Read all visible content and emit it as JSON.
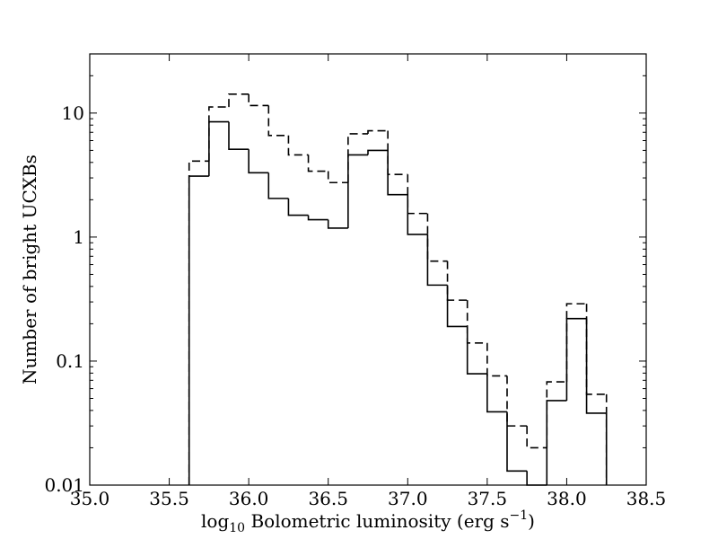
{
  "chart_data": {
    "type": "bar",
    "style": "step-histogram",
    "xlabel_prefix": "log",
    "xlabel_sub": "10",
    "xlabel_main": " Bolometric luminosity (erg s",
    "xlabel_sup": "−1",
    "xlabel_suffix": ")",
    "ylabel": "Number of bright UCXBs",
    "xlim": [
      35.0,
      38.5
    ],
    "ylim": [
      0.01,
      30
    ],
    "y_scale": "log",
    "grid": false,
    "x_ticks": [
      {
        "value": 35.0,
        "label": "35.0"
      },
      {
        "value": 35.5,
        "label": "35.5"
      },
      {
        "value": 36.0,
        "label": "36.0"
      },
      {
        "value": 36.5,
        "label": "36.5"
      },
      {
        "value": 37.0,
        "label": "37.0"
      },
      {
        "value": 37.5,
        "label": "37.5"
      },
      {
        "value": 38.0,
        "label": "38.0"
      },
      {
        "value": 38.5,
        "label": "38.5"
      }
    ],
    "y_ticks": [
      {
        "value": 0.01,
        "label": "0.01"
      },
      {
        "value": 0.1,
        "label": "0.1"
      },
      {
        "value": 1,
        "label": "1"
      },
      {
        "value": 10,
        "label": "10"
      }
    ],
    "bin_edges": [
      35.625,
      35.75,
      35.875,
      36.0,
      36.125,
      36.25,
      36.375,
      36.5,
      36.625,
      36.75,
      36.875,
      37.0,
      37.125,
      37.25,
      37.375,
      37.5,
      37.625,
      37.75,
      37.875,
      38.0,
      38.125,
      38.25
    ],
    "series": [
      {
        "linestyle": "solid",
        "values": [
          3.1,
          8.5,
          5.1,
          3.3,
          2.05,
          1.5,
          1.38,
          1.18,
          4.6,
          5.0,
          2.2,
          1.05,
          0.41,
          0.19,
          0.079,
          0.039,
          0.013,
          0.0,
          0.048,
          0.22,
          0.038
        ]
      },
      {
        "linestyle": "dashed",
        "values": [
          4.1,
          11.2,
          14.2,
          11.5,
          6.6,
          4.6,
          3.4,
          2.75,
          6.8,
          7.2,
          3.2,
          1.55,
          0.64,
          0.31,
          0.14,
          0.076,
          0.03,
          0.02,
          0.068,
          0.29,
          0.054
        ]
      }
    ]
  }
}
